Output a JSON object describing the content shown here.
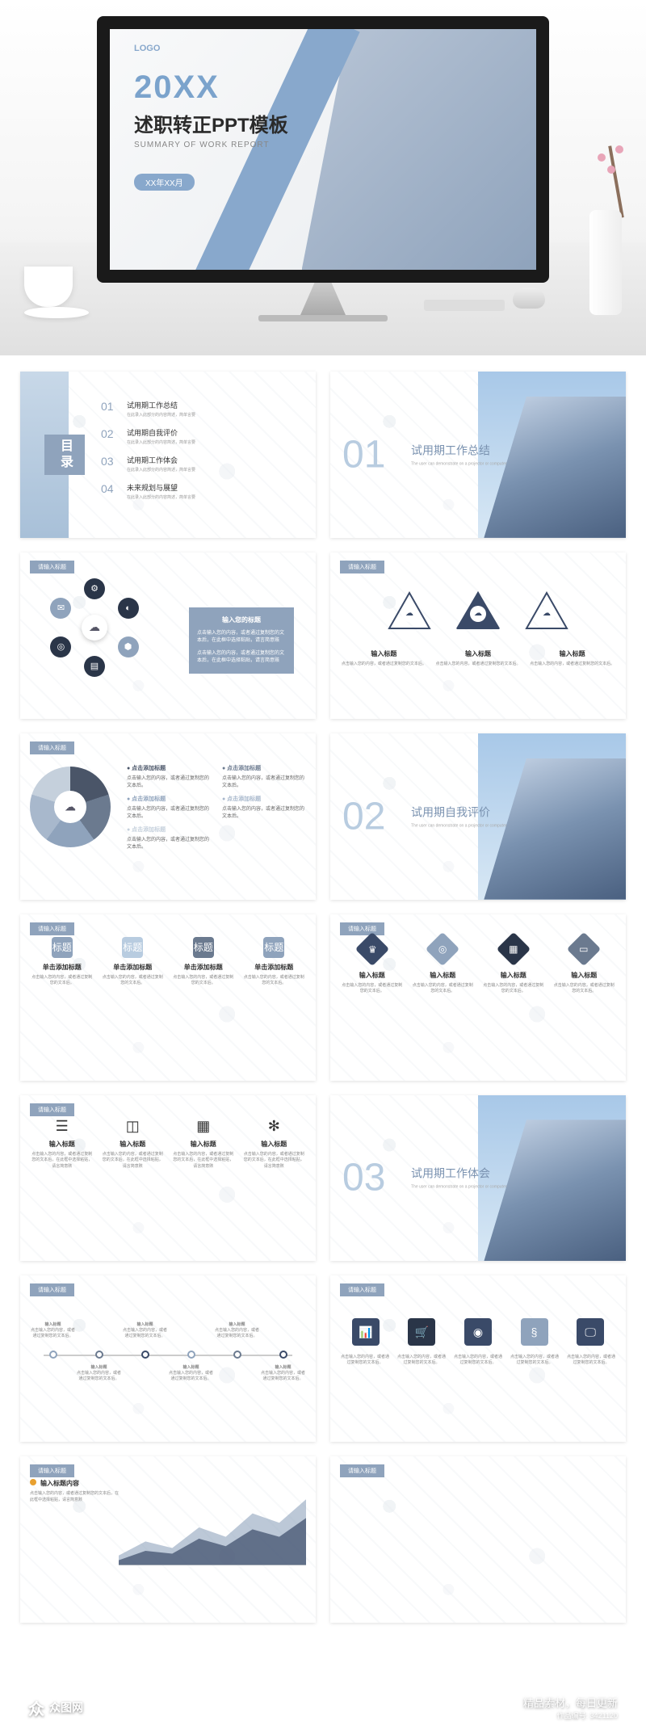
{
  "colors": {
    "primary": "#8fa3bc",
    "primary_light": "#b8cce0",
    "primary_dark": "#6b7a8f",
    "navy": "#3a4a68",
    "navy_dark": "#2a3548",
    "gray": "#888888",
    "accent": "#e8a030"
  },
  "hero": {
    "logo": "LOGO",
    "year": "20XX",
    "title": "述职转正PPT模板",
    "subtitle": "SUMMARY OF WORK REPORT",
    "date_label": "XX年XX月"
  },
  "toc": {
    "badge": "目录",
    "items": [
      {
        "num": "01",
        "title": "试用期工作总结",
        "desc": "在此录入此部分的内容简述，简单言要"
      },
      {
        "num": "02",
        "title": "试用期自我评价",
        "desc": "在此录入此部分的内容简述，简单言要"
      },
      {
        "num": "03",
        "title": "试用期工作体会",
        "desc": "在此录入此部分的内容简述，简单言要"
      },
      {
        "num": "04",
        "title": "未来规划与展望",
        "desc": "在此录入此部分的内容简述，简单言要"
      }
    ]
  },
  "sections": [
    {
      "num": "01",
      "title": "试用期工作总结"
    },
    {
      "num": "02",
      "title": "试用期自我评价"
    },
    {
      "num": "03",
      "title": "试用期工作体会"
    }
  ],
  "header_label": "请输入标题",
  "placeholder": {
    "title": "输入标题",
    "col_title": "单击添加标题",
    "desc_short": "点击输入您的内容，或者通过复制您的文本后。",
    "desc_long": "点击输入您的内容，或者通过复制您的文本后，在此框中选择粘贴，请言简意赅",
    "side_title": "输入您的标题",
    "chart_title": "输入标题内容"
  },
  "slide4_cluster": {
    "nodes": [
      {
        "angle": 0,
        "color": "#2a3548",
        "icon": "⚙"
      },
      {
        "angle": 60,
        "color": "#2a3548",
        "icon": "◐"
      },
      {
        "angle": 120,
        "color": "#8fa3bc",
        "icon": "⬢"
      },
      {
        "angle": 180,
        "color": "#2a3548",
        "icon": "▤"
      },
      {
        "angle": 240,
        "color": "#2a3548",
        "icon": "◎"
      },
      {
        "angle": 300,
        "color": "#8fa3bc",
        "icon": "✉"
      }
    ],
    "center_icon": "☁"
  },
  "slide5_triangles": [
    {
      "border_color": "#3a4a68",
      "filled": false
    },
    {
      "border_color": "#3a4a68",
      "filled": true,
      "fill": "#3a4a68"
    },
    {
      "border_color": "#3a4a68",
      "filled": false
    }
  ],
  "slide6_pie": {
    "segments": [
      {
        "color": "#4a5568",
        "title": "点击添加标题"
      },
      {
        "color": "#6b7a8f",
        "title": "点击添加标题"
      },
      {
        "color": "#8fa3bc",
        "title": "点击添加标题"
      },
      {
        "color": "#a8b8cc",
        "title": "点击添加标题"
      },
      {
        "color": "#c5d0dc",
        "title": "点击添加标题"
      }
    ],
    "center_icon": "☁"
  },
  "slide8_boxes": [
    {
      "color": "#8fa3bc"
    },
    {
      "color": "#b8cce0"
    },
    {
      "color": "#6b7a8f"
    },
    {
      "color": "#8fa3bc"
    }
  ],
  "slide9_diamonds": [
    {
      "color": "#3a4a68",
      "icon": "♛"
    },
    {
      "color": "#8fa3bc",
      "icon": "◎"
    },
    {
      "color": "#2a3548",
      "icon": "▦"
    },
    {
      "color": "#6b7a8f",
      "icon": "▭"
    }
  ],
  "slide10_icons": [
    {
      "icon": "☰"
    },
    {
      "icon": "◫"
    },
    {
      "icon": "▦"
    },
    {
      "icon": "✻"
    }
  ],
  "slide12_timeline": {
    "count": 6,
    "colors": [
      "#8fa3bc",
      "#6b7a8f",
      "#3a4a68",
      "#8fa3bc",
      "#6b7a8f",
      "#3a4a68"
    ]
  },
  "slide13_icons": [
    {
      "color": "#3a4a68",
      "icon": "📊"
    },
    {
      "color": "#2a3548",
      "icon": "🛒"
    },
    {
      "color": "#3a4a68",
      "icon": "◉"
    },
    {
      "color": "#8fa3bc",
      "icon": "§"
    },
    {
      "color": "#3a4a68",
      "icon": "🖵"
    }
  ],
  "slide14_chart": {
    "series1_color": "#8fa3bc",
    "series2_color": "#3a4a68",
    "points1": [
      10,
      25,
      18,
      40,
      30,
      55,
      45,
      70
    ],
    "points2": [
      5,
      15,
      12,
      28,
      20,
      38,
      30,
      50
    ]
  },
  "watermark": {
    "brand": "众图网",
    "tagline": "精品素材，每日更新",
    "id_label": "作品编号: 3421120"
  }
}
